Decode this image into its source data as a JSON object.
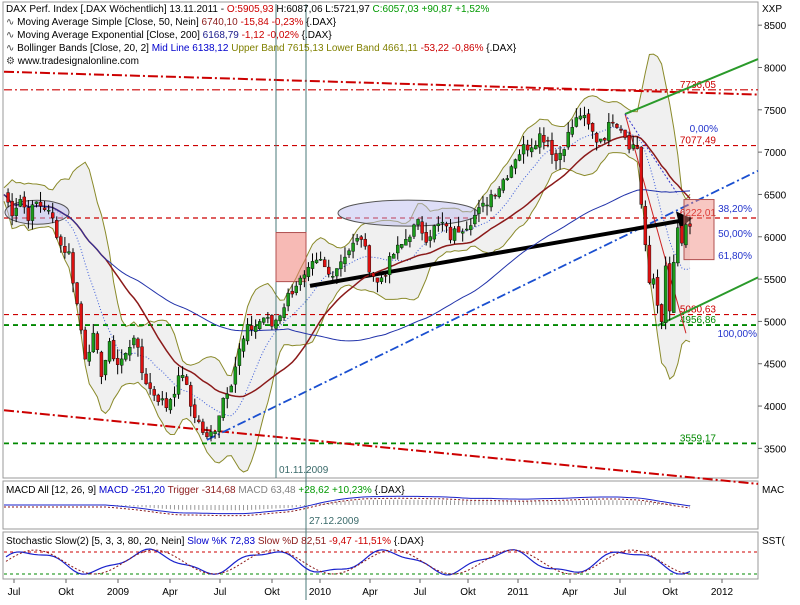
{
  "header": {
    "title_line": "DAX Perf. Index [.DAX  Wöchentlich] 13.11.2011  -",
    "ohlc": [
      {
        "text": "O:5905,93",
        "color": "#cc0000"
      },
      {
        "text": "H:6087,06",
        "color": "#000000"
      },
      {
        "text": "L:5721,97",
        "color": "#000000"
      },
      {
        "text": "C:6057,03",
        "color": "#009900"
      },
      {
        "text": "+90,87",
        "color": "#009900"
      },
      {
        "text": "+1,52%",
        "color": "#009900"
      }
    ],
    "axis_unit": "XXP",
    "lines": [
      {
        "segments": [
          {
            "text": "Moving Average Simple [Close, 50, Nein]",
            "color": "#000000"
          },
          {
            "text": "6740,10",
            "color": "#8b1a1a"
          },
          {
            "text": "-15,84",
            "color": "#cc0000"
          },
          {
            "text": "-0,23%",
            "color": "#cc0000"
          },
          {
            "text": "{.DAX}",
            "color": "#000000"
          }
        ]
      },
      {
        "segments": [
          {
            "text": "Moving Average Exponential [Close, 200]",
            "color": "#000000"
          },
          {
            "text": "6168,79",
            "color": "#1a1a8b"
          },
          {
            "text": "-1,12",
            "color": "#cc0000"
          },
          {
            "text": "-0,02%",
            "color": "#cc0000"
          },
          {
            "text": "{.DAX}",
            "color": "#000000"
          }
        ]
      },
      {
        "segments": [
          {
            "text": "Bollinger Bands [Close, 20, 2]",
            "color": "#000000"
          },
          {
            "text": "Mid Line 6138,12",
            "color": "#0000cc"
          },
          {
            "text": "Upper Band 7615,13",
            "color": "#808000"
          },
          {
            "text": "Lower Band 4661,11",
            "color": "#808000"
          },
          {
            "text": "-53,22 -0,86%",
            "color": "#cc0000"
          },
          {
            "text": "{.DAX}",
            "color": "#000000"
          }
        ]
      },
      {
        "segments": [
          {
            "text": "www.tradesignalonline.com",
            "color": "#000000"
          }
        ]
      }
    ]
  },
  "price_panel": {
    "y_ticks": [
      3500,
      4000,
      4500,
      5000,
      5500,
      6000,
      6500,
      7000,
      7500,
      8000,
      8500
    ],
    "ylim": [
      3150,
      8750
    ],
    "levels": [
      {
        "label": "7736,05",
        "value": 7736.05,
        "style": "red-dash-dot",
        "color": "#cc0000"
      },
      {
        "label": "7077,49",
        "value": 7077.49,
        "style": "red-dash",
        "color": "#cc0000"
      },
      {
        "label": "6222,01",
        "value": 6222.01,
        "style": "red-dash",
        "color": "#cc0000"
      },
      {
        "label": "5080,63",
        "value": 5080.63,
        "style": "red-dash",
        "color": "#cc0000"
      },
      {
        "label": "4956,86",
        "value": 4956.86,
        "style": "green-dash",
        "color": "#008800"
      },
      {
        "label": "3559,17",
        "value": 3559.17,
        "style": "green-dash",
        "color": "#008800"
      }
    ],
    "fib_levels": [
      {
        "label": "0,00%"
      },
      {
        "label": "38,20%"
      },
      {
        "label": "50,00%"
      },
      {
        "label": "61,80%"
      },
      {
        "label": "100,00%"
      }
    ],
    "date_annotations": [
      {
        "label": "01.11.2009"
      },
      {
        "label": "27.12.2009"
      }
    ]
  },
  "x_axis": {
    "labels": [
      "Jul",
      "Okt",
      "2009",
      "Apr",
      "Jul",
      "Okt",
      "2010",
      "Apr",
      "Jul",
      "Okt",
      "2011",
      "Apr",
      "Jul",
      "Okt",
      "2012"
    ]
  },
  "macd_panel": {
    "segments": [
      {
        "text": "MACD All [12, 26, 9]",
        "color": "#000000"
      },
      {
        "text": "MACD -251,20",
        "color": "#0000cc"
      },
      {
        "text": "Trigger -314,68",
        "color": "#8b1a1a"
      },
      {
        "text": "MACD",
        "color": "#808080"
      },
      {
        "text": "63,48",
        "color": "#808080"
      },
      {
        "text": "+28,62",
        "color": "#009900"
      },
      {
        "text": "+10,23%",
        "color": "#009900"
      },
      {
        "text": "{.DAX}",
        "color": "#000000"
      }
    ],
    "axis_label": "MAC"
  },
  "stoch_panel": {
    "segments": [
      {
        "text": "Stochastic Slow(2) [5, 3, 3, 80, 20, Nein]",
        "color": "#000000"
      },
      {
        "text": "Slow %K 72,83",
        "color": "#0000cc"
      },
      {
        "text": "Slow %D 82,51",
        "color": "#8b1a1a"
      },
      {
        "text": "-9,47",
        "color": "#cc0000"
      },
      {
        "text": "-11,51%",
        "color": "#cc0000"
      },
      {
        "text": "{.DAX}",
        "color": "#000000"
      }
    ],
    "axis_label": "SST("
  },
  "chart_data": {
    "type": "candlestick",
    "title": "DAX Perf. Index [.DAX Wöchentlich] 13.11.2011",
    "xlabel": "",
    "ylabel": "",
    "ylim": [
      3150,
      8750
    ],
    "x_labels": [
      "Jul",
      "Okt",
      "2009",
      "Apr",
      "Jul",
      "Okt",
      "2010",
      "Apr",
      "Jul",
      "Okt",
      "2011",
      "Apr",
      "Jul",
      "Okt",
      "2012"
    ],
    "close_path": [
      [
        0,
        6500
      ],
      [
        4,
        6300
      ],
      [
        8,
        6450
      ],
      [
        12,
        6250
      ],
      [
        16,
        6400
      ],
      [
        20,
        6350
      ],
      [
        24,
        6200
      ],
      [
        28,
        5900
      ],
      [
        32,
        5800
      ],
      [
        36,
        5200
      ],
      [
        40,
        4600
      ],
      [
        44,
        4800
      ],
      [
        48,
        4400
      ],
      [
        52,
        4700
      ],
      [
        56,
        4500
      ],
      [
        60,
        4600
      ],
      [
        64,
        4850
      ],
      [
        68,
        4400
      ],
      [
        72,
        4200
      ],
      [
        76,
        4100
      ],
      [
        80,
        4000
      ],
      [
        84,
        4200
      ],
      [
        88,
        4400
      ],
      [
        92,
        4000
      ],
      [
        96,
        3800
      ],
      [
        100,
        3600
      ],
      [
        104,
        3750
      ],
      [
        108,
        4100
      ],
      [
        112,
        4300
      ],
      [
        116,
        4650
      ],
      [
        120,
        4900
      ],
      [
        124,
        4950
      ],
      [
        128,
        5050
      ],
      [
        132,
        4950
      ],
      [
        136,
        5100
      ],
      [
        140,
        5300
      ],
      [
        144,
        5450
      ],
      [
        148,
        5500
      ],
      [
        152,
        5650
      ],
      [
        156,
        5700
      ],
      [
        160,
        5550
      ],
      [
        164,
        5650
      ],
      [
        168,
        5800
      ],
      [
        172,
        5900
      ],
      [
        176,
        6000
      ],
      [
        180,
        5650
      ],
      [
        184,
        5450
      ],
      [
        188,
        5600
      ],
      [
        192,
        5800
      ],
      [
        196,
        5900
      ],
      [
        200,
        6050
      ],
      [
        204,
        6150
      ],
      [
        208,
        6000
      ],
      [
        212,
        6100
      ],
      [
        216,
        6150
      ],
      [
        220,
        6000
      ],
      [
        224,
        6100
      ],
      [
        228,
        6150
      ],
      [
        232,
        6250
      ],
      [
        236,
        6350
      ],
      [
        240,
        6500
      ],
      [
        244,
        6600
      ],
      [
        248,
        6750
      ],
      [
        252,
        6950
      ],
      [
        256,
        7050
      ],
      [
        260,
        7100
      ],
      [
        264,
        7200
      ],
      [
        268,
        7150
      ],
      [
        272,
        6900
      ],
      [
        276,
        7100
      ],
      [
        280,
        7300
      ],
      [
        284,
        7450
      ],
      [
        288,
        7300
      ],
      [
        292,
        7150
      ],
      [
        296,
        7200
      ],
      [
        300,
        7400
      ],
      [
        304,
        7300
      ],
      [
        308,
        7100
      ],
      [
        312,
        7050
      ],
      [
        314,
        6400
      ],
      [
        316,
        5900
      ],
      [
        318,
        5400
      ],
      [
        320,
        5500
      ],
      [
        322,
        5200
      ],
      [
        324,
        5050
      ],
      [
        326,
        5600
      ],
      [
        328,
        5100
      ],
      [
        330,
        5700
      ],
      [
        332,
        6050
      ],
      [
        334,
        5900
      ],
      [
        336,
        6150
      ],
      [
        338,
        6057
      ]
    ],
    "series": [
      {
        "name": "Moving Average Simple [Close, 50, Nein]",
        "last": 6740.1
      },
      {
        "name": "Moving Average Exponential [Close, 200]",
        "last": 6168.79
      },
      {
        "name": "Bollinger Bands [Close, 20, 2] Mid Line",
        "last": 6138.12
      },
      {
        "name": "Upper Band",
        "last": 7615.13
      },
      {
        "name": "Lower Band",
        "last": 4661.11
      }
    ],
    "horizontal_levels": [
      7736.05,
      7077.49,
      6222.01,
      5080.63,
      4956.86,
      3559.17
    ],
    "last_close": 6057.03,
    "grid": false
  }
}
